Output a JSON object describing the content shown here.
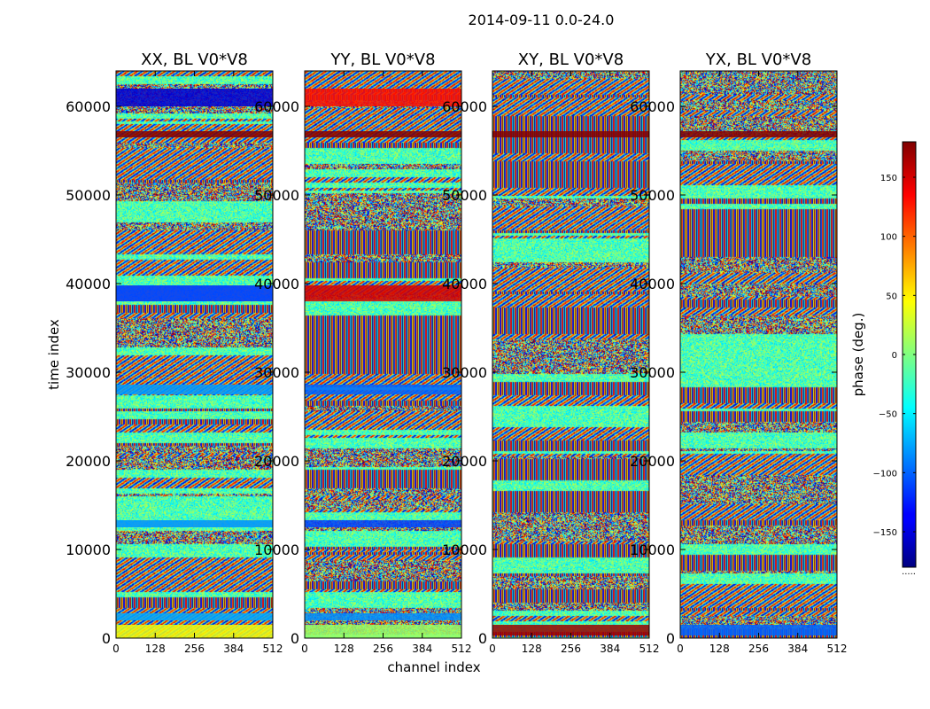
{
  "chart_data": {
    "type": "heatmap",
    "suptitle": "2014-09-11 0.0-24.0",
    "xlabel": "channel index",
    "ylabel": "time index",
    "x_range": [
      0,
      512
    ],
    "y_range": [
      0,
      64000
    ],
    "x_ticks": [
      0,
      128,
      256,
      384,
      512
    ],
    "y_ticks": [
      0,
      10000,
      20000,
      30000,
      40000,
      50000,
      60000
    ],
    "x_tick_labels": [
      "0",
      "128",
      "256",
      "384",
      "512"
    ],
    "y_tick_labels": [
      "0",
      "10000",
      "20000",
      "30000",
      "40000",
      "50000",
      "60000"
    ],
    "colormap": "jet",
    "colorbar": {
      "label": "phase (deg.)",
      "range": [
        -180,
        180
      ],
      "ticks": [
        -150,
        -100,
        -50,
        0,
        50,
        100,
        150
      ],
      "tick_labels": [
        "−150",
        "−100",
        "−50",
        "0",
        "50",
        "100",
        "150"
      ],
      "extra_label": "....."
    },
    "panels": [
      {
        "title": "XX, BL V0*V8",
        "seed": 11,
        "bands": [
          {
            "y0": 0,
            "y1": 1500,
            "phase": 40
          },
          {
            "y0": 2000,
            "y1": 2800,
            "phase": -75
          },
          {
            "y0": 12500,
            "y1": 13300,
            "phase": -85
          },
          {
            "y0": 27500,
            "y1": 28600,
            "phase": -80
          },
          {
            "y0": 38000,
            "y1": 39800,
            "phase": -120
          },
          {
            "y0": 56500,
            "y1": 57200,
            "phase": 178
          },
          {
            "y0": 60000,
            "y1": 62000,
            "phase": -150
          }
        ]
      },
      {
        "title": "YY, BL V0*V8",
        "seed": 23,
        "bands": [
          {
            "y0": 0,
            "y1": 1500,
            "phase": 10
          },
          {
            "y0": 2000,
            "y1": 2800,
            "phase": -85
          },
          {
            "y0": 12500,
            "y1": 13300,
            "phase": -110
          },
          {
            "y0": 27500,
            "y1": 28600,
            "phase": -100
          },
          {
            "y0": 38000,
            "y1": 39800,
            "phase": 150
          },
          {
            "y0": 56500,
            "y1": 57200,
            "phase": 178
          },
          {
            "y0": 60000,
            "y1": 62000,
            "phase": 130
          }
        ]
      },
      {
        "title": "XY, BL V0*V8",
        "seed": 37,
        "bands": [
          {
            "y0": 300,
            "y1": 1500,
            "phase": 170
          },
          {
            "y0": 56500,
            "y1": 57200,
            "phase": 178
          }
        ]
      },
      {
        "title": "YX, BL V0*V8",
        "seed": 53,
        "bands": [
          {
            "y0": 300,
            "y1": 1500,
            "phase": -100
          },
          {
            "y0": 56500,
            "y1": 57200,
            "phase": 178
          }
        ]
      }
    ]
  }
}
